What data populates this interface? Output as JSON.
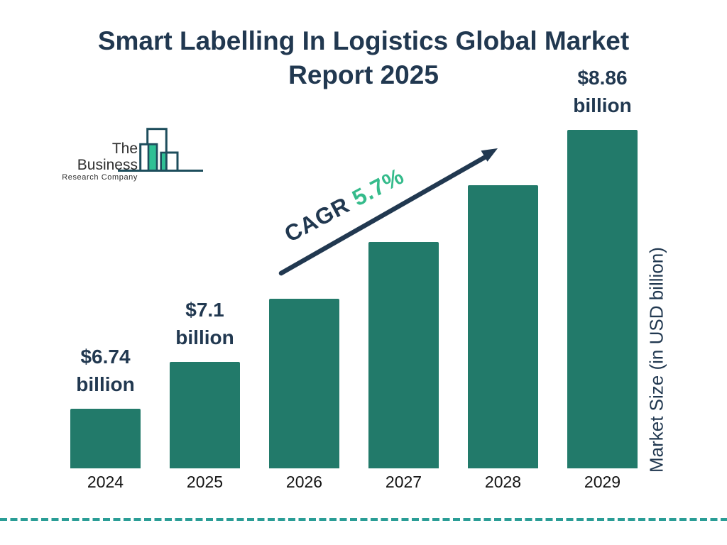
{
  "title": {
    "line1": "Smart Labelling In Logistics Global Market",
    "line2": "Report 2025"
  },
  "logo": {
    "name_line1": "The Business",
    "name_line2": "Research Company"
  },
  "cagr": {
    "label": "CAGR",
    "value": "5.7%"
  },
  "y_axis_label": "Market Size (in USD billion)",
  "chart_data": {
    "type": "bar",
    "title": "Smart Labelling In Logistics Global Market Report 2025",
    "categories": [
      "2024",
      "2025",
      "2026",
      "2027",
      "2028",
      "2029"
    ],
    "values": [
      6.74,
      7.1,
      7.58,
      8.01,
      8.44,
      8.86
    ],
    "labeled_values": {
      "2024": "$6.74 billion",
      "2025": "$7.1 billion",
      "2029": "$8.86 billion"
    },
    "visible_value_labels": [
      {
        "index": 0,
        "line1": "$6.74",
        "line2": "billion"
      },
      {
        "index": 1,
        "line1": "$7.1",
        "line2": "billion"
      },
      {
        "index": 5,
        "line1": "$8.86",
        "line2": "billion"
      }
    ],
    "xlabel": "",
    "ylabel": "Market Size (in USD billion)",
    "ylim": [
      6.29,
      8.86
    ],
    "grid": false,
    "legend": false,
    "annotation": "CAGR 5.7%",
    "bar_color": "#227a6a"
  },
  "colors": {
    "navy": "#213850",
    "bar_teal": "#227a6a",
    "cagr_green": "#35bb8b",
    "dash_teal": "#2a9d96",
    "logo_outline": "#1d4d5c",
    "logo_green": "#2fc095"
  }
}
